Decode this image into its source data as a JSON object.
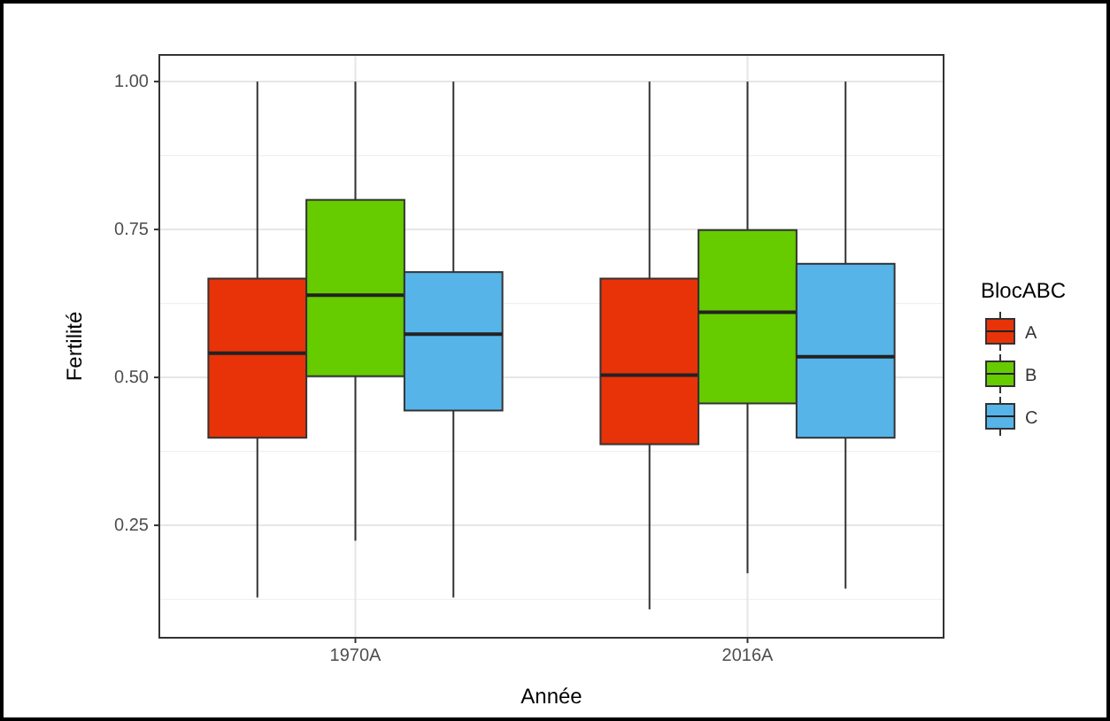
{
  "chart_data": {
    "type": "box",
    "xlabel": "Année",
    "ylabel": "Fertilité",
    "legend_title": "BlocABC",
    "legend": "right",
    "grid": true,
    "categories": [
      "1970A",
      "2016A"
    ],
    "ylim": [
      0.06,
      1.045
    ],
    "yticks": [
      {
        "value": 0.25,
        "label": "0.25"
      },
      {
        "value": 0.5,
        "label": "0.50"
      },
      {
        "value": 0.75,
        "label": "0.75"
      },
      {
        "value": 1,
        "label": "1.00"
      }
    ],
    "series": [
      {
        "name": "A",
        "color": "#e83208",
        "boxes": [
          {
            "low": 0.128,
            "q1": 0.398,
            "median": 0.541,
            "q3": 0.667,
            "high": 1.0
          },
          {
            "low": 0.108,
            "q1": 0.387,
            "median": 0.504,
            "q3": 0.667,
            "high": 1.0
          }
        ]
      },
      {
        "name": "B",
        "color": "#66cc00",
        "boxes": [
          {
            "low": 0.224,
            "q1": 0.502,
            "median": 0.639,
            "q3": 0.8,
            "high": 1.0
          },
          {
            "low": 0.169,
            "q1": 0.456,
            "median": 0.61,
            "q3": 0.749,
            "high": 1.0
          }
        ]
      },
      {
        "name": "C",
        "color": "#56b4e9",
        "boxes": [
          {
            "low": 0.128,
            "q1": 0.444,
            "median": 0.573,
            "q3": 0.678,
            "high": 1.0
          },
          {
            "low": 0.143,
            "q1": 0.398,
            "median": 0.535,
            "q3": 0.692,
            "high": 1.0
          }
        ]
      }
    ]
  }
}
